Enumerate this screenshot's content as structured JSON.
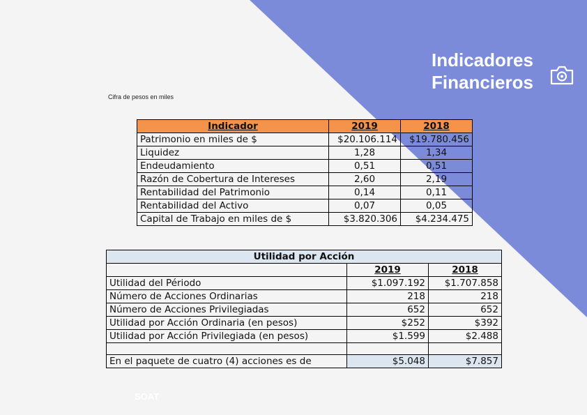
{
  "header": {
    "title_line1": "Indicadores",
    "title_line2": "Financieros",
    "accent_color": "#7b8bd9"
  },
  "note": "Cifra de pesos en miles",
  "indicators_table": {
    "headers": [
      "Indicador",
      "2019",
      "2018"
    ],
    "rows": [
      [
        "Patrimonio en miles de $",
        "$20.106.114",
        "$19.780.456"
      ],
      [
        "Liquidez",
        "1,28",
        "1,34"
      ],
      [
        "Endeudamiento",
        "0,51",
        "0,51"
      ],
      [
        "Razón de Cobertura de Intereses",
        "2,60",
        "2,19"
      ],
      [
        "Rentabilidad del Patrimonio",
        "0,14",
        "0,11"
      ],
      [
        "Rentabilidad del Activo",
        "0,07",
        "0,05"
      ],
      [
        "Capital de Trabajo en miles de $",
        "$3.820.306",
        "$4.234.475"
      ]
    ]
  },
  "eps_table": {
    "title": "Utilidad por Acción",
    "years": [
      "2019",
      "2018"
    ],
    "rows": [
      [
        "Utilidad del Périodo",
        "$1.097.192",
        "$1.707.858"
      ],
      [
        "Número de Acciones Ordinarias",
        "218",
        "218"
      ],
      [
        "Número de Acciones Privilegiadas",
        "652",
        "652"
      ],
      [
        "Utilidad por Acción Ordinaria (en pesos)",
        "$252",
        "$392"
      ],
      [
        "Utilidad por Acción Privilegiada (en pesos)",
        "$1.599",
        "$2.488"
      ]
    ],
    "package_row": [
      "En el paquete de cuatro (4) acciones es de",
      "$5.048",
      "$7.857"
    ]
  },
  "footer": "SOAT"
}
